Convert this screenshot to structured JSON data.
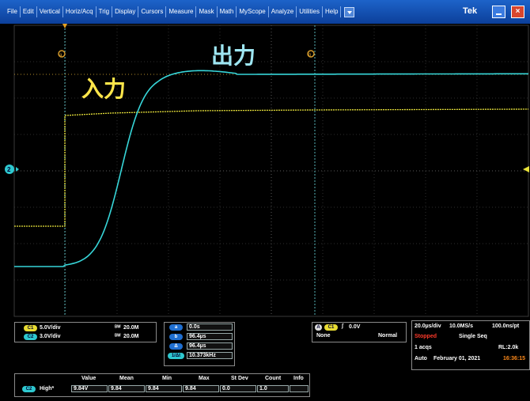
{
  "menubar": {
    "items": [
      "File",
      "Edit",
      "Vertical",
      "Horiz/Acq",
      "Trig",
      "Display",
      "Cursors",
      "Measure",
      "Mask",
      "Math",
      "MyScope",
      "Analyze",
      "Utilities",
      "Help"
    ],
    "brand": "Tek"
  },
  "waveform": {
    "input_label": "入力",
    "output_label": "出力",
    "input_color": "#e8e23a",
    "output_color": "#37d6d9",
    "ref_marker": "2",
    "cursor_a": "a",
    "cursor_b": "b"
  },
  "channels": [
    {
      "id": "C1",
      "scale": "5.0V/div",
      "bw": "20.0M"
    },
    {
      "id": "C2",
      "scale": "3.0V/div",
      "bw": "20.0M"
    }
  ],
  "cursors": {
    "a_label": "a",
    "a_value": "0.0s",
    "b_label": "b",
    "b_value": "96.4µs",
    "delta_label": "Δ",
    "delta_value": "96.4µs",
    "inv_label": "1/Δt",
    "inv_value": "10.373kHz"
  },
  "trigger": {
    "source": "C1",
    "level": "0.0V",
    "coupling": "None",
    "mode": "Normal"
  },
  "acquisition": {
    "timebase": "20.0µs/div",
    "sample_rate": "10.0MS/s",
    "resolution": "100.0ns/pt",
    "state": "Stopped",
    "seq": "Single Seq",
    "acqs": "1 acqs",
    "record_length": "RL:2.0k",
    "auto": "Auto",
    "date": "February 01, 2021",
    "time": "16:36:15"
  },
  "measurement": {
    "headers": [
      "Value",
      "Mean",
      "Min",
      "Max",
      "St Dev",
      "Count",
      "Info"
    ],
    "source": "C2",
    "name": "High*",
    "values": [
      "9.84V",
      "9.84",
      "9.84",
      "9.84",
      "0.0",
      "1.0",
      ""
    ]
  }
}
